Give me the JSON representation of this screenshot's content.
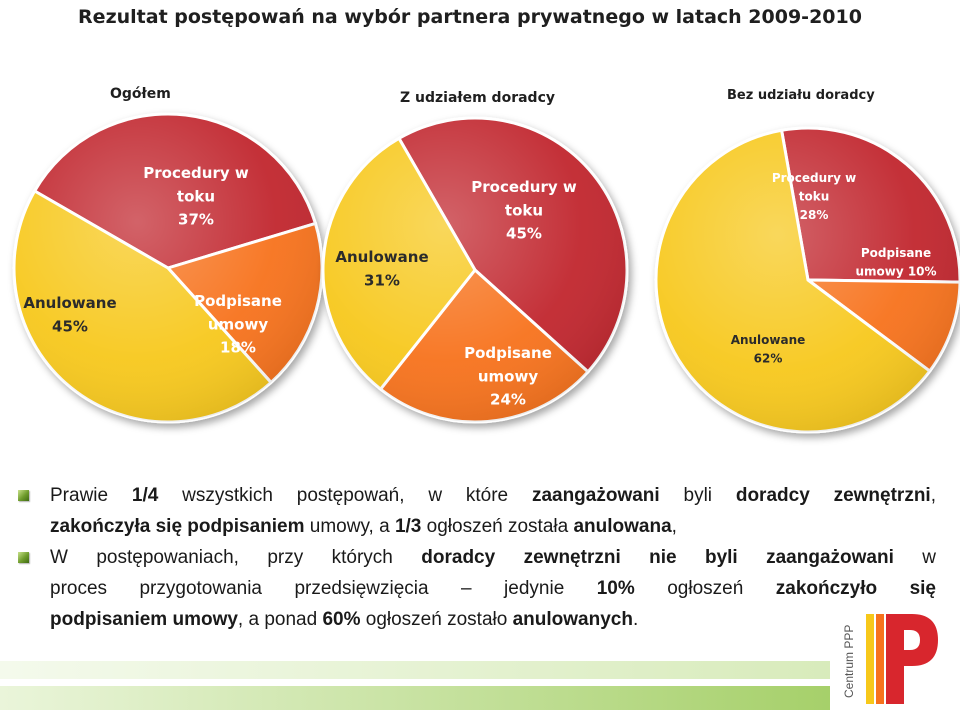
{
  "title": "Rezultat postępowań na wybór partnera prywatnego w latach 2009-2010",
  "colors": {
    "procedury": "#c1272d",
    "podpisane": "#f7721d",
    "anulowane": "#f7c81a"
  },
  "chart_data": [
    {
      "type": "pie",
      "title": "Ogółem",
      "slices": [
        {
          "label_lines": [
            "Procedury w",
            "toku"
          ],
          "value": 37,
          "value_label": "37%"
        },
        {
          "label_lines": [
            "Podpisane",
            "umowy"
          ],
          "value": 18,
          "value_label": "18%"
        },
        {
          "label_lines": [
            "Anulowane"
          ],
          "value": 45,
          "value_label": "45%"
        }
      ]
    },
    {
      "type": "pie",
      "title": "Z udziałem doradcy",
      "slices": [
        {
          "label_lines": [
            "Procedury w",
            "toku"
          ],
          "value": 45,
          "value_label": "45%"
        },
        {
          "label_lines": [
            "Podpisane",
            "umowy"
          ],
          "value": 24,
          "value_label": "24%"
        },
        {
          "label_lines": [
            "Anulowane"
          ],
          "value": 31,
          "value_label": "31%"
        }
      ]
    },
    {
      "type": "pie",
      "title": "Bez udziału doradcy",
      "slices": [
        {
          "label_lines": [
            "Procedury w",
            "toku"
          ],
          "value": 28,
          "value_label": "28%"
        },
        {
          "label_lines": [
            "Podpisane",
            "umowy 10%"
          ],
          "value": 10,
          "value_label": ""
        },
        {
          "label_lines": [
            "Anulowane"
          ],
          "value": 62,
          "value_label": "62%"
        }
      ]
    }
  ],
  "bullets": [
    {
      "line1": [
        {
          "t": "Prawie ",
          "b": false
        },
        {
          "t": "1/4",
          "b": true
        },
        {
          "t": " wszystkich postępowań, w które ",
          "b": false
        },
        {
          "t": "zaangażowani",
          "b": true
        },
        {
          "t": " byli ",
          "b": false
        },
        {
          "t": "doradcy zewnętrzni",
          "b": true
        },
        {
          "t": ",",
          "b": false
        }
      ],
      "line2": [
        {
          "t": "zakończyła się podpisaniem",
          "b": true
        },
        {
          "t": " umowy, a ",
          "b": false
        },
        {
          "t": "1/3",
          "b": true
        },
        {
          "t": " ogłoszeń została ",
          "b": false
        },
        {
          "t": "anulowana",
          "b": true
        },
        {
          "t": ",",
          "b": false
        }
      ]
    },
    {
      "line1": [
        {
          "t": "W postępowaniach, przy których ",
          "b": false
        },
        {
          "t": "doradcy zewnętrzni nie byli zaangażowani",
          "b": true
        },
        {
          "t": " w",
          "b": false
        }
      ],
      "line2": [
        {
          "t": "proces przygotowania przedsięwzięcia – jedynie ",
          "b": false
        },
        {
          "t": "10%",
          "b": true
        },
        {
          "t": " ogłoszeń ",
          "b": false
        },
        {
          "t": "zakończyło się",
          "b": true
        }
      ],
      "line3": [
        {
          "t": "podpisaniem umowy",
          "b": true
        },
        {
          "t": ", a ponad ",
          "b": false
        },
        {
          "t": "60%",
          "b": true
        },
        {
          "t": " ogłoszeń zostało ",
          "b": false
        },
        {
          "t": "anulowanych",
          "b": true
        },
        {
          "t": ".",
          "b": false
        }
      ]
    }
  ],
  "logo": {
    "text": "Centrum PPP",
    "letter": "P"
  }
}
